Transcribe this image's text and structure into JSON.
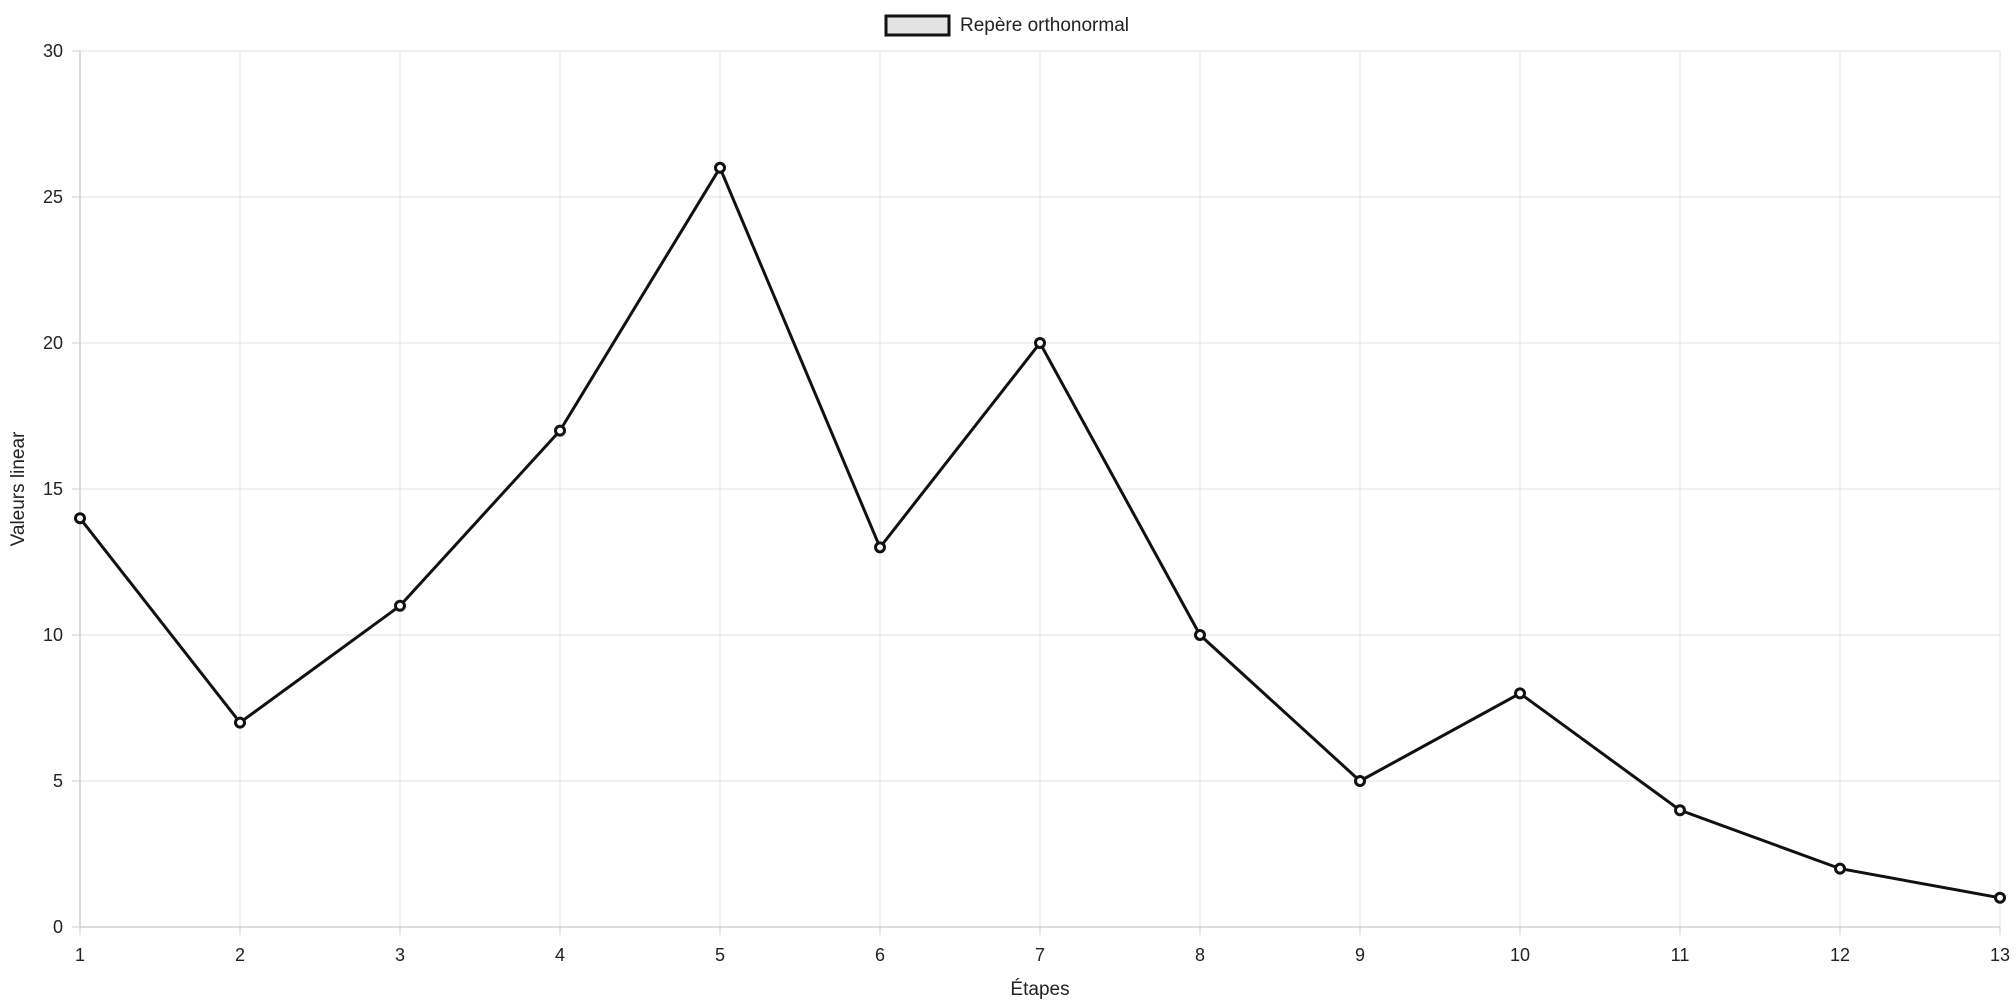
{
  "chart_data": {
    "type": "line",
    "x": [
      1,
      2,
      3,
      4,
      5,
      6,
      7,
      8,
      9,
      10,
      11,
      12,
      13
    ],
    "series": [
      {
        "name": "Repère orthonormal",
        "values": [
          14,
          7,
          11,
          17,
          26,
          13,
          20,
          10,
          5,
          8,
          4,
          2,
          1
        ]
      }
    ],
    "xlabel": "Étapes",
    "ylabel": "Valeurs linear",
    "xlim": [
      1,
      13
    ],
    "ylim": [
      0,
      30
    ],
    "yticks": [
      0,
      5,
      10,
      15,
      20,
      25,
      30
    ],
    "xticks": [
      1,
      2,
      3,
      4,
      5,
      6,
      7,
      8,
      9,
      10,
      11,
      12,
      13
    ],
    "grid": true,
    "legend": "top-center",
    "colors": {
      "line": "#111111",
      "grid": "#e0e0e0",
      "axis": "#cfcfcf",
      "legend_fill": "#e3e3e3"
    }
  }
}
